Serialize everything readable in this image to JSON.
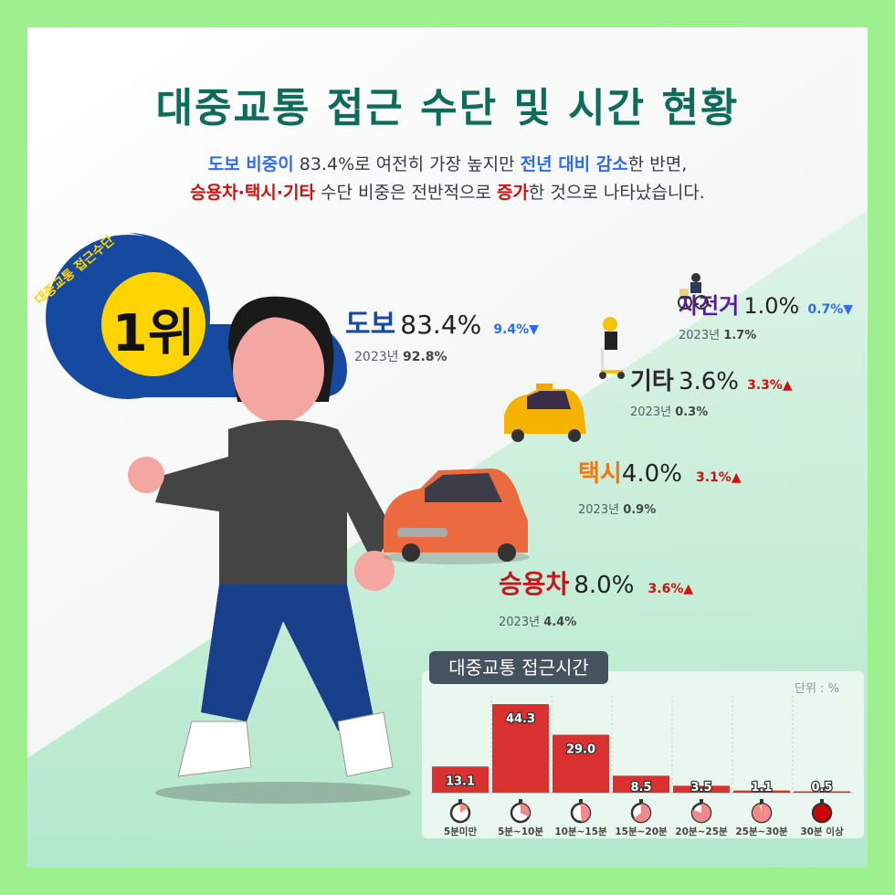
{
  "title": "대중교통 접근 수단 및 시간 현황",
  "subtitle": {
    "line1": [
      {
        "t": "도보 비중이",
        "s": "blue"
      },
      {
        "t": " 83.4%로 여전히 가장 높지만 ",
        "s": ""
      },
      {
        "t": "전년 대비 감소",
        "s": "blue"
      },
      {
        "t": "한 반면,",
        "s": ""
      }
    ],
    "line2": [
      {
        "t": "승용차·택시·기타",
        "s": "red"
      },
      {
        "t": " 수단 비중은 전반적으로 ",
        "s": ""
      },
      {
        "t": "증가",
        "s": "red"
      },
      {
        "t": "한 것으로 나타났습니다.",
        "s": ""
      }
    ]
  },
  "badge": {
    "caption": "대중교통 접근수단",
    "rank": "1위"
  },
  "colors": {
    "title": "#0f6b5a",
    "bar": "#d93030",
    "increase": "#d30f0f",
    "decrease": "#2f6cf0",
    "border": "#9ef08f",
    "chart_tab": "#44535e"
  },
  "modes": [
    {
      "name": "도보",
      "value": "83.4%",
      "change": "9.4%",
      "direction": "down",
      "prev_label": "2023년",
      "prev": "92.8%",
      "color": "#164aa0"
    },
    {
      "name": "자전거",
      "value": "1.0%",
      "change": "0.7%",
      "direction": "down",
      "prev_label": "2023년",
      "prev": "1.7%",
      "color": "#5a1a9a"
    },
    {
      "name": "기타",
      "value": "3.6%",
      "change": "3.3%",
      "direction": "up",
      "prev_label": "2023년",
      "prev": "0.3%",
      "color": "#2b2b2b"
    },
    {
      "name": "택시",
      "value": "4.0%",
      "change": "3.1%",
      "direction": "up",
      "prev_label": "2023년",
      "prev": "0.9%",
      "color": "#f07a10"
    },
    {
      "name": "승용차",
      "value": "8.0%",
      "change": "3.6%",
      "direction": "up",
      "prev_label": "2023년",
      "prev": "4.4%",
      "color": "#c8161e"
    }
  ],
  "chart_data": {
    "type": "bar",
    "title": "대중교통 접근시간",
    "unit_label": "단위 : %",
    "categories": [
      "5분미만",
      "5분~10분",
      "10분~15분",
      "15분~20분",
      "20분~25분",
      "25분~30분",
      "30분 이상"
    ],
    "values": [
      13.1,
      44.3,
      29.0,
      8.5,
      3.5,
      1.1,
      0.5
    ],
    "value_labels": [
      "13.1",
      "44.3",
      "29.0",
      "8.5",
      "3.5",
      "1.1",
      "0.5"
    ],
    "ylim": [
      0,
      44.3
    ],
    "grid": "vertical dotted separators",
    "icons": "stopwatch-icon"
  }
}
